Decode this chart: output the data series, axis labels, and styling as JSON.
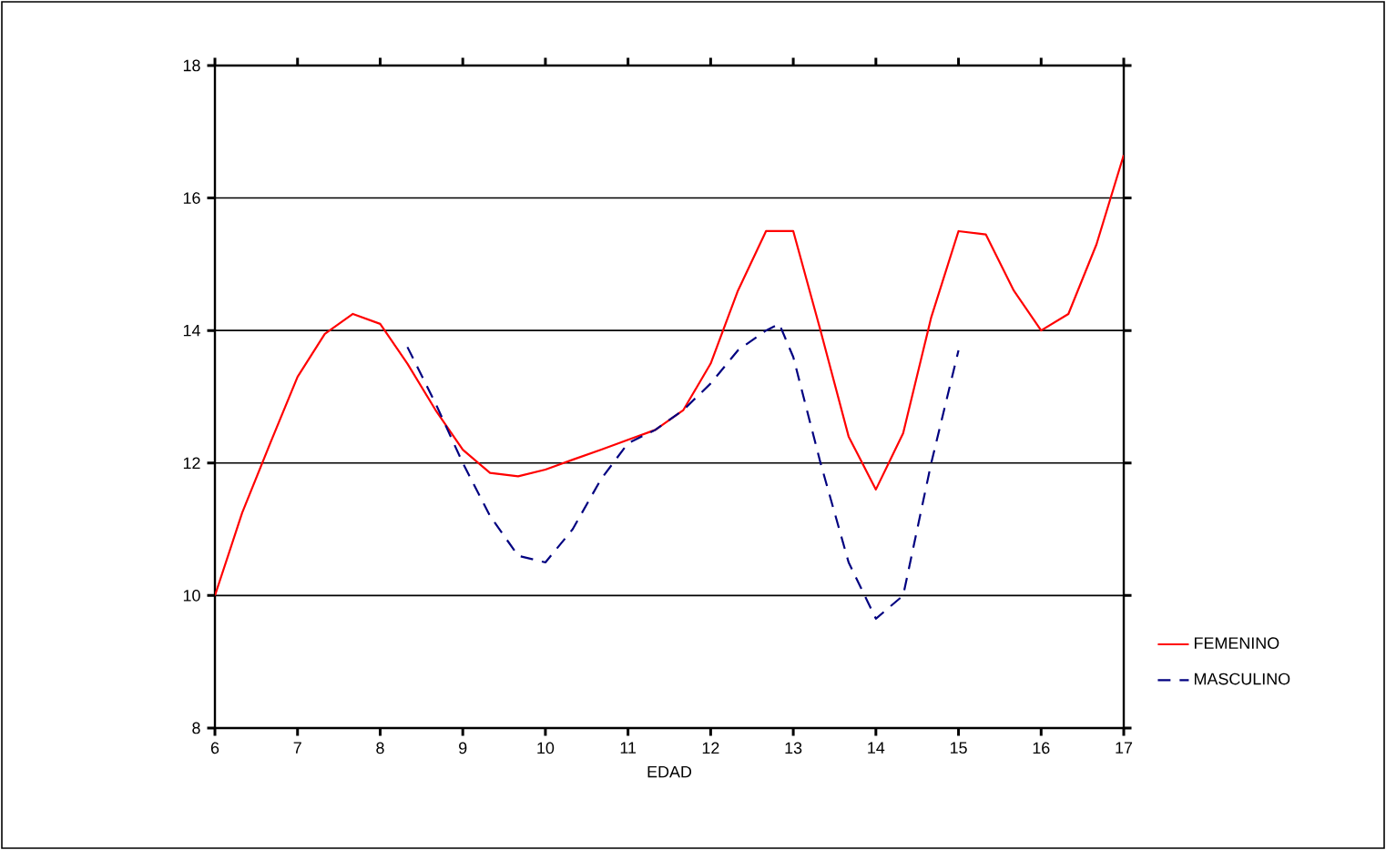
{
  "chart_data": {
    "type": "line",
    "xlabel": "EDAD",
    "xlim": [
      6,
      17
    ],
    "ylim": [
      8,
      18
    ],
    "xticks": [
      6,
      7,
      8,
      9,
      10,
      11,
      12,
      13,
      14,
      15,
      16,
      17
    ],
    "yticks": [
      8,
      10,
      12,
      14,
      16,
      18
    ],
    "grid": "y",
    "legend": "right",
    "series": [
      {
        "name": "FEMENINO",
        "color": "#ff0000",
        "line_style": "solid",
        "x": [
          6,
          6.33,
          6.67,
          7,
          7.33,
          7.67,
          8,
          8.33,
          8.67,
          9,
          9.33,
          9.67,
          10,
          10.33,
          10.67,
          11,
          11.33,
          11.67,
          12,
          12.33,
          12.67,
          13,
          13.33,
          13.67,
          14,
          14.33,
          14.67,
          15,
          15.33,
          15.67,
          16,
          16.33,
          16.67,
          17
        ],
        "values": [
          10,
          11.25,
          12.3,
          13.3,
          13.95,
          14.25,
          14.1,
          13.5,
          12.8,
          12.2,
          11.85,
          11.8,
          11.9,
          12.05,
          12.2,
          12.35,
          12.5,
          12.8,
          13.5,
          14.6,
          15.5,
          15.5,
          14,
          12.4,
          11.6,
          12.45,
          14.2,
          15.5,
          15.45,
          14.6,
          14,
          14.25,
          15.3,
          16.65
        ]
      },
      {
        "name": "MASCULINO",
        "color": "#000080",
        "line_style": "dashed",
        "x": [
          8.33,
          8.67,
          9,
          9.33,
          9.67,
          10,
          10.33,
          10.67,
          11,
          11.33,
          11.67,
          12,
          12.33,
          12.67,
          12.83,
          13,
          13.33,
          13.67,
          14,
          14.33,
          14.67,
          15
        ],
        "values": [
          13.75,
          12.9,
          12,
          11.2,
          10.6,
          10.5,
          11,
          11.75,
          12.3,
          12.5,
          12.8,
          13.2,
          13.7,
          14,
          14.1,
          13.6,
          12,
          10.5,
          9.65,
          10,
          12,
          13.7
        ]
      }
    ]
  }
}
